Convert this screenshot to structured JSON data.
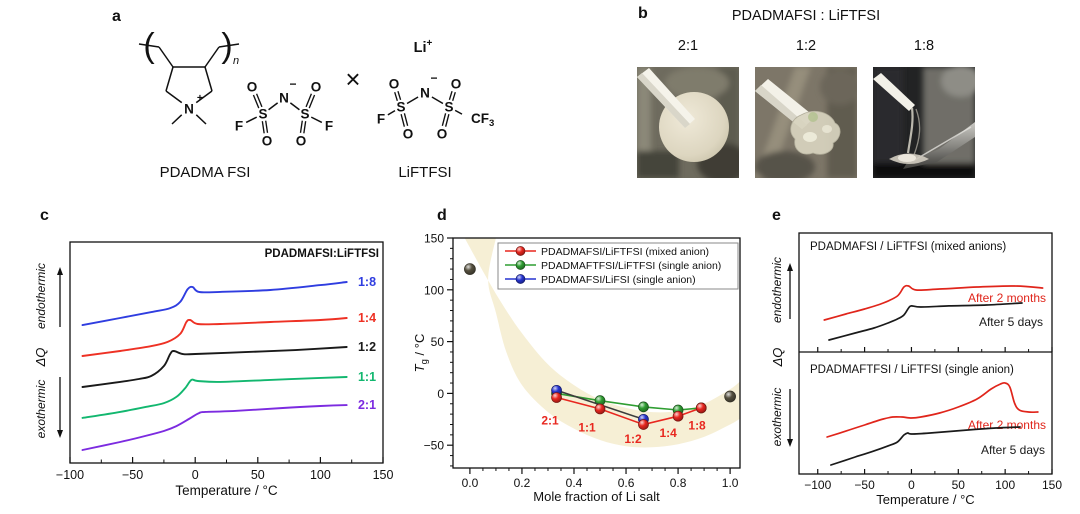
{
  "panels": {
    "a": {
      "letter": "a",
      "label_left": "PDADMA FSI",
      "label_right": "LiFTFSI",
      "atoms": {
        "O": "O",
        "S": "S",
        "N": "N",
        "F": "F",
        "Li": "Li",
        "cf3_main": "CF",
        "cf3_sub": "3",
        "plus": "+",
        "minus": "−",
        "n": "n",
        "times": "×"
      }
    },
    "b": {
      "letter": "b",
      "title": "PDADMAFSI : LiFTFSI",
      "ratios": [
        "2:1",
        "1:2",
        "1:8"
      ],
      "photos": [
        "white-pellet-on-rod",
        "translucent-gel-on-rod",
        "viscous-liquid-stretching-to-spatula"
      ]
    },
    "c": {
      "letter": "c"
    },
    "d": {
      "letter": "d"
    },
    "e": {
      "letter": "e"
    }
  },
  "axis_annotations": {
    "endothermic": "endothermic",
    "exothermic": "exothermic",
    "delta_q": "ΔQ"
  },
  "chart_data": [
    {
      "id": "panel-c",
      "type": "line",
      "title": "PDADMAFSI:LiFTFSI",
      "xlabel": "Temperature / °C",
      "ylabel": "ΔQ",
      "xlim": [
        -100,
        150
      ],
      "xticks": [
        -100,
        -50,
        0,
        50,
        100,
        150
      ],
      "y_units": "heat flow, arbitrary units (fraction of plot height from top)",
      "series": [
        {
          "label": "1:8",
          "color": "#2f3de0",
          "points": [
            [
              -90,
              0.376
            ],
            [
              -60,
              0.344
            ],
            [
              -35,
              0.317
            ],
            [
              -20,
              0.299
            ],
            [
              -12,
              0.271
            ],
            [
              -6,
              0.213
            ],
            [
              -2,
              0.204
            ],
            [
              3,
              0.226
            ],
            [
              20,
              0.226
            ],
            [
              60,
              0.217
            ],
            [
              100,
              0.195
            ],
            [
              121,
              0.181
            ]
          ]
        },
        {
          "label": "1:4",
          "color": "#ee3124",
          "points": [
            [
              -90,
              0.516
            ],
            [
              -60,
              0.493
            ],
            [
              -35,
              0.471
            ],
            [
              -22,
              0.452
            ],
            [
              -12,
              0.416
            ],
            [
              -7,
              0.362
            ],
            [
              -4,
              0.353
            ],
            [
              2,
              0.371
            ],
            [
              20,
              0.371
            ],
            [
              60,
              0.362
            ],
            [
              100,
              0.353
            ],
            [
              121,
              0.344
            ]
          ]
        },
        {
          "label": "1:2",
          "color": "#1a1a1a",
          "points": [
            [
              -90,
              0.656
            ],
            [
              -60,
              0.633
            ],
            [
              -45,
              0.62
            ],
            [
              -35,
              0.606
            ],
            [
              -25,
              0.561
            ],
            [
              -20,
              0.507
            ],
            [
              -17,
              0.493
            ],
            [
              -10,
              0.507
            ],
            [
              0,
              0.507
            ],
            [
              40,
              0.498
            ],
            [
              80,
              0.489
            ],
            [
              121,
              0.475
            ]
          ]
        },
        {
          "label": "1:1",
          "color": "#12b76f",
          "points": [
            [
              -90,
              0.796
            ],
            [
              -60,
              0.769
            ],
            [
              -40,
              0.747
            ],
            [
              -25,
              0.729
            ],
            [
              -15,
              0.701
            ],
            [
              -8,
              0.661
            ],
            [
              -3,
              0.624
            ],
            [
              2,
              0.629
            ],
            [
              20,
              0.633
            ],
            [
              60,
              0.624
            ],
            [
              100,
              0.615
            ],
            [
              121,
              0.611
            ]
          ]
        },
        {
          "label": "2:1",
          "color": "#7c2be0",
          "points": [
            [
              -90,
              0.941
            ],
            [
              -60,
              0.905
            ],
            [
              -40,
              0.878
            ],
            [
              -25,
              0.855
            ],
            [
              -15,
              0.833
            ],
            [
              -5,
              0.801
            ],
            [
              3,
              0.774
            ],
            [
              8,
              0.769
            ],
            [
              30,
              0.765
            ],
            [
              70,
              0.751
            ],
            [
              100,
              0.742
            ],
            [
              121,
              0.738
            ]
          ]
        }
      ]
    },
    {
      "id": "panel-d",
      "type": "scatter-line",
      "xlabel": "Mole fraction of Li salt",
      "ylabel": "Tg / °C",
      "ylabel_parts": {
        "main": "T",
        "sub": "g",
        "rest": " / °C"
      },
      "xlim": [
        -0.065,
        1.038
      ],
      "ylim": [
        -72,
        150
      ],
      "xticks": [
        0.0,
        0.2,
        0.4,
        0.6,
        0.8,
        1.0
      ],
      "yticks": [
        -50,
        0,
        50,
        100,
        150
      ],
      "band": {
        "color": "#f6efd5",
        "upper": [
          [
            -0.02,
            150
          ],
          [
            0.05,
            118
          ],
          [
            0.12,
            88
          ],
          [
            0.2,
            58
          ],
          [
            0.3,
            28
          ],
          [
            0.4,
            8
          ],
          [
            0.5,
            -6
          ],
          [
            0.6,
            -14
          ],
          [
            0.7,
            -18
          ],
          [
            0.8,
            -17
          ],
          [
            0.9,
            -10
          ],
          [
            1.0,
            4
          ],
          [
            1.04,
            12
          ]
        ],
        "lower": [
          [
            1.04,
            -24
          ],
          [
            1.0,
            -30
          ],
          [
            0.9,
            -42
          ],
          [
            0.8,
            -49
          ],
          [
            0.7,
            -52
          ],
          [
            0.6,
            -51
          ],
          [
            0.5,
            -45
          ],
          [
            0.4,
            -34
          ],
          [
            0.3,
            -18
          ],
          [
            0.2,
            8
          ],
          [
            0.14,
            40
          ],
          [
            0.1,
            78
          ],
          [
            0.07,
            110
          ],
          [
            0.1,
            150
          ]
        ]
      },
      "reference_color": "#55503f",
      "reference_points": [
        {
          "x": 0.0,
          "y": 120
        },
        {
          "x": 1.0,
          "y": -3
        }
      ],
      "series": [
        {
          "name": "PDADMAFSI/LiFTFSI (mixed anion)",
          "color": "#e8271f",
          "x": [
            0.333,
            0.5,
            0.667,
            0.8,
            0.889
          ],
          "y": [
            -4,
            -15,
            -30,
            -22,
            -14
          ]
        },
        {
          "name": "PDADMAFTFSI/LiFTFSI (single anion)",
          "color": "#2f9e32",
          "x": [
            0.333,
            0.5,
            0.667,
            0.8,
            0.889
          ],
          "y": [
            0,
            -7,
            -13,
            -16,
            -14
          ]
        },
        {
          "name": "PDADMAFSI/LiFSI (single anion)",
          "color": "#2634d0",
          "line_color": "#3c3c3c",
          "x": [
            0.333,
            0.667
          ],
          "y": [
            3,
            -25
          ]
        }
      ],
      "label_color": "#e8271f",
      "point_labels": [
        {
          "text": "2:1",
          "x": 0.308,
          "y": -26
        },
        {
          "text": "1:1",
          "x": 0.45,
          "y": -33
        },
        {
          "text": "1:2",
          "x": 0.627,
          "y": -44
        },
        {
          "text": "1:4",
          "x": 0.762,
          "y": -38
        },
        {
          "text": "1:8",
          "x": 0.873,
          "y": -31
        }
      ],
      "legend_position": "top-right"
    },
    {
      "id": "panel-e",
      "type": "line",
      "xlabel": "Temperature / °C",
      "ylabel": "ΔQ",
      "xlim": [
        -120,
        150
      ],
      "xticks": [
        -100,
        -50,
        0,
        50,
        100,
        150
      ],
      "y_units": "heat flow, arbitrary units (fraction of subplot height from top)",
      "subplots": [
        {
          "title": "PDADMAFSI / LiFTFSI (mixed anions)",
          "series": [
            {
              "label": "After 2 months",
              "color": "#e0251b",
              "points": [
                [
                  -93,
                  0.731
                ],
                [
                  -70,
                  0.681
                ],
                [
                  -50,
                  0.639
                ],
                [
                  -30,
                  0.588
                ],
                [
                  -15,
                  0.529
                ],
                [
                  -8,
                  0.454
                ],
                [
                  -3,
                  0.445
                ],
                [
                  5,
                  0.479
                ],
                [
                  30,
                  0.471
                ],
                [
                  70,
                  0.454
                ],
                [
                  110,
                  0.445
                ],
                [
                  140,
                  0.462
                ]
              ]
            },
            {
              "label": "After 5 days",
              "color": "#1a1a1a",
              "points": [
                [
                  -88,
                  0.899
                ],
                [
                  -60,
                  0.84
                ],
                [
                  -40,
                  0.798
                ],
                [
                  -25,
                  0.756
                ],
                [
                  -15,
                  0.723
                ],
                [
                  -8,
                  0.689
                ],
                [
                  -3,
                  0.63
                ],
                [
                  0,
                  0.613
                ],
                [
                  10,
                  0.622
                ],
                [
                  40,
                  0.613
                ],
                [
                  80,
                  0.605
                ],
                [
                  118,
                  0.588
                ]
              ]
            }
          ]
        },
        {
          "title": "PDADMAFTFSI / LiFTFSI (single anion)",
          "series": [
            {
              "label": "After 2 months",
              "color": "#e0251b",
              "points": [
                [
                  -90,
                  0.697
                ],
                [
                  -70,
                  0.648
                ],
                [
                  -50,
                  0.598
                ],
                [
                  -30,
                  0.549
                ],
                [
                  -20,
                  0.533
                ],
                [
                  -10,
                  0.533
                ],
                [
                  0,
                  0.541
                ],
                [
                  10,
                  0.533
                ],
                [
                  30,
                  0.5
                ],
                [
                  50,
                  0.451
                ],
                [
                  70,
                  0.385
                ],
                [
                  85,
                  0.303
                ],
                [
                  95,
                  0.262
                ],
                [
                  100,
                  0.254
                ],
                [
                  105,
                  0.287
                ],
                [
                  110,
                  0.418
                ],
                [
                  115,
                  0.475
                ],
                [
                  125,
                  0.492
                ],
                [
                  135,
                  0.492
                ]
              ]
            },
            {
              "label": "After 5 days",
              "color": "#1a1a1a",
              "points": [
                [
                  -86,
                  0.926
                ],
                [
                  -60,
                  0.861
                ],
                [
                  -40,
                  0.811
                ],
                [
                  -25,
                  0.77
                ],
                [
                  -15,
                  0.738
                ],
                [
                  -8,
                  0.68
                ],
                [
                  -4,
                  0.664
                ],
                [
                  0,
                  0.672
                ],
                [
                  20,
                  0.664
                ],
                [
                  60,
                  0.639
                ],
                [
                  90,
                  0.623
                ],
                [
                  116,
                  0.615
                ]
              ]
            }
          ]
        }
      ]
    }
  ]
}
